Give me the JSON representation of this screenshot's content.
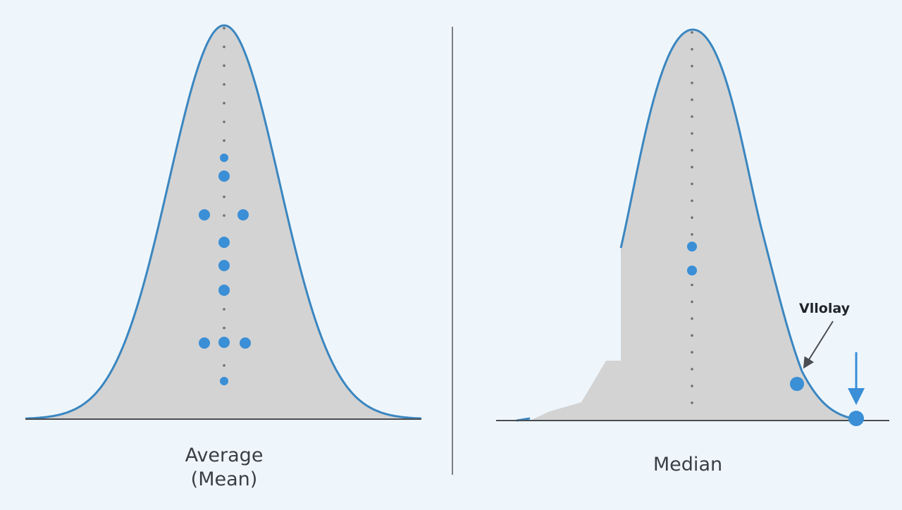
{
  "left_panel": {
    "label_line1": "Average",
    "label_line2": "(Mean)"
  },
  "right_panel": {
    "label": "Median",
    "annotation": "Vllolay"
  },
  "colors": {
    "background": "#eef6fc",
    "curve": "#3a86c0",
    "fill": "#d3d3d3",
    "dot": "#3a8fd6",
    "axis": "#4a4e52",
    "divider": "#7a7e82"
  }
}
